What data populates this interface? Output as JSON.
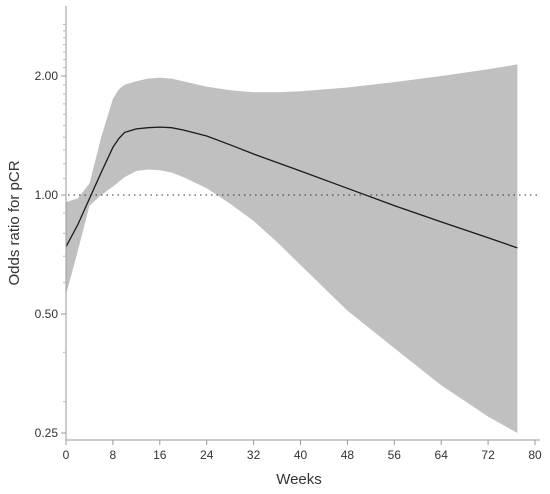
{
  "chart_data": {
    "type": "line",
    "xlabel": "Weeks",
    "ylabel": "Odds ratio for pCR",
    "y_scale": "log",
    "xlim": [
      0,
      80
    ],
    "ylim": [
      0.25,
      2.85
    ],
    "x_ticks": [
      0,
      8,
      16,
      24,
      32,
      40,
      48,
      56,
      64,
      72,
      80
    ],
    "y_ticks": [
      {
        "value": 0.25,
        "label": "0.25"
      },
      {
        "value": 0.5,
        "label": "0.50"
      },
      {
        "value": 1.0,
        "label": "1.00"
      },
      {
        "value": 2.0,
        "label": "2.00"
      }
    ],
    "reference_line": {
      "y": 1.0,
      "style": "dotted"
    },
    "series": [
      {
        "role": "estimate",
        "color": "#1a1a1a",
        "x": [
          0,
          2,
          4,
          6,
          8,
          9,
          10,
          12,
          14,
          16,
          18,
          20,
          24,
          28,
          32,
          40,
          48,
          56,
          64,
          72,
          77
        ],
        "y": [
          0.74,
          0.84,
          0.98,
          1.14,
          1.32,
          1.39,
          1.44,
          1.47,
          1.48,
          1.485,
          1.48,
          1.46,
          1.41,
          1.34,
          1.27,
          1.15,
          1.04,
          0.94,
          0.855,
          0.78,
          0.735
        ]
      },
      {
        "role": "ci_upper",
        "color": "#c0c0c0",
        "x": [
          0,
          2,
          4,
          6,
          8,
          9,
          10,
          12,
          14,
          16,
          18,
          20,
          24,
          28,
          32,
          36,
          40,
          48,
          56,
          64,
          72,
          77
        ],
        "y": [
          0.96,
          0.98,
          1.07,
          1.4,
          1.75,
          1.85,
          1.9,
          1.94,
          1.97,
          1.98,
          1.97,
          1.94,
          1.88,
          1.84,
          1.82,
          1.82,
          1.83,
          1.87,
          1.93,
          2.0,
          2.08,
          2.14
        ]
      },
      {
        "role": "ci_lower",
        "color": "#c0c0c0",
        "x": [
          0,
          2,
          4,
          6,
          8,
          10,
          12,
          14,
          16,
          18,
          20,
          24,
          28,
          32,
          36,
          40,
          48,
          56,
          64,
          72,
          77
        ],
        "y": [
          0.56,
          0.72,
          0.94,
          1.0,
          1.05,
          1.11,
          1.15,
          1.16,
          1.155,
          1.14,
          1.11,
          1.04,
          0.95,
          0.86,
          0.76,
          0.665,
          0.51,
          0.41,
          0.33,
          0.275,
          0.25
        ]
      }
    ]
  }
}
